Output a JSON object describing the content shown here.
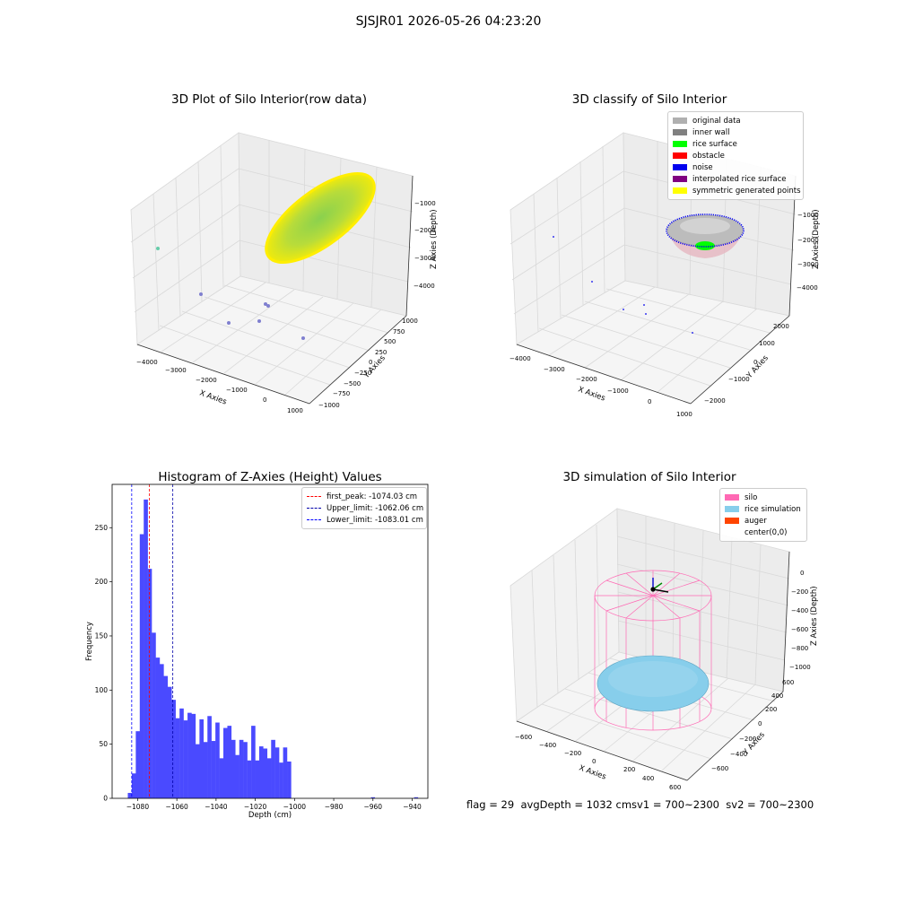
{
  "suptitle": "SJSJR01 2026-05-26 04:23:20",
  "status_text": "flag = 29  avgDepth = 1032 cmsv1 = 700~2300  sv2 = 700~2300",
  "chart_data": [
    {
      "type": "scatter",
      "projection": "3d",
      "title": "3D Plot of Silo Interior(row data)",
      "xlabel": "X Axies",
      "ylabel": "Y Axies",
      "zlabel": "Z Axies (Depth)",
      "xticks": [
        "-4000",
        "-3000",
        "-2000",
        "-1000",
        "0",
        "1000"
      ],
      "yticks": [
        "-1000",
        "-750",
        "-500",
        "-250",
        "0",
        "250",
        "500",
        "750",
        "1000"
      ],
      "zticks": [
        "-1000",
        "-2000",
        "-3000",
        "-4000"
      ],
      "colors": {
        "surface_edge": "#ffee00",
        "surface_center": "#8ad14e",
        "outlier_a": "#7f7fcf",
        "outlier_b": "#66ccaa"
      }
    },
    {
      "type": "scatter",
      "projection": "3d",
      "title": "3D classify of Silo Interior",
      "xlabel": "X Axies",
      "ylabel": "Y Axies",
      "zlabel": "Z Axies (Depth)",
      "xticks": [
        "-4000",
        "-3000",
        "-2000",
        "-1000",
        "0",
        "1000"
      ],
      "yticks": [
        "-2000",
        "-1000",
        "0",
        "1000",
        "2000"
      ],
      "zticks": [
        "-1000",
        "-2000",
        "-3000",
        "-4000"
      ],
      "legend": [
        {
          "label": "original data",
          "color": "#b0b0b0"
        },
        {
          "label": "inner wall",
          "color": "#808080"
        },
        {
          "label": "rice surface",
          "color": "#00ff00"
        },
        {
          "label": "obstacle",
          "color": "#ff0000"
        },
        {
          "label": "noise",
          "color": "#0000ee"
        },
        {
          "label": "interpolated rice surface",
          "color": "#800080"
        },
        {
          "label": "symmetric generated points",
          "color": "#ffff00"
        }
      ]
    },
    {
      "type": "bar",
      "title": "Histogram of Z-Axies (Height) Values",
      "xlabel": "Depth (cm)",
      "ylabel": "Frequency",
      "xlim": [
        -1093,
        -932
      ],
      "ylim": [
        0,
        290
      ],
      "xticks": [
        -1080,
        -1060,
        -1040,
        -1020,
        -1000,
        -980,
        -960,
        -940
      ],
      "yticks": [
        0,
        50,
        100,
        150,
        200,
        250
      ],
      "bin_start": -1085.0,
      "bin_width": 2.03,
      "values": [
        5,
        23,
        62,
        244,
        276,
        212,
        153,
        130,
        124,
        113,
        103,
        91,
        74,
        83,
        72,
        79,
        78,
        50,
        73,
        52,
        76,
        53,
        70,
        37,
        65,
        67,
        54,
        40,
        54,
        52,
        35,
        67,
        35,
        48,
        46,
        37,
        54,
        47,
        33,
        47,
        34
      ],
      "outliers": [
        {
          "x": -961,
          "value": 1
        },
        {
          "x": -939,
          "value": 1
        }
      ],
      "bar_color": "#4a4aff",
      "lines": [
        {
          "label": "first_peak: -1074.03 cm",
          "x": -1074.03,
          "color": "#ff0000"
        },
        {
          "label": "Upper_limit: -1062.06 cm",
          "x": -1062.06,
          "color": "#0000aa"
        },
        {
          "label": "Lower_limit: -1083.01 cm",
          "x": -1083.01,
          "color": "#0000ff"
        }
      ]
    },
    {
      "type": "scatter",
      "projection": "3d",
      "title": "3D simulation of Silo Interior",
      "xlabel": "X Axies",
      "ylabel": "Y Axies",
      "zlabel": "Z Axies (Depth)",
      "xticks": [
        "-600",
        "-400",
        "-200",
        "0",
        "200",
        "400",
        "600"
      ],
      "yticks": [
        "-600",
        "-400",
        "-200",
        "0",
        "200",
        "400",
        "600"
      ],
      "zticks": [
        "0",
        "-200",
        "-400",
        "-600",
        "-800",
        "-1000"
      ],
      "legend": [
        {
          "label": "silo",
          "color": "#ff69b4"
        },
        {
          "label": "rice simulation",
          "color": "#87ceeb"
        },
        {
          "label": "auger",
          "color": "#ff4500"
        },
        {
          "label": "center(0,0)",
          "color": ""
        }
      ]
    }
  ]
}
